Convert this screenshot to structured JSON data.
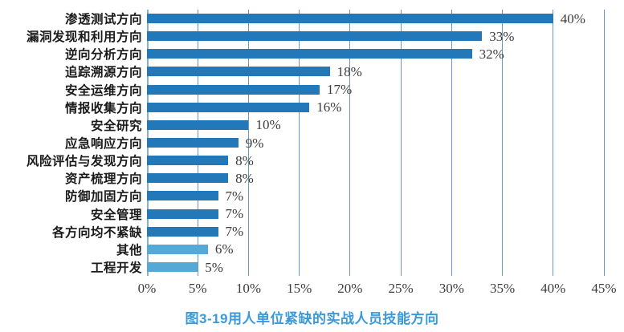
{
  "chart_data": {
    "type": "bar",
    "orientation": "horizontal",
    "title": "图3-19用人单位紧缺的实战人员技能方向",
    "categories": [
      "渗透测试方向",
      "漏洞发现和利用方向",
      "逆向分析方向",
      "追踪溯源方向",
      "安全运维方向",
      "情报收集方向",
      "安全研究",
      "应急响应方向",
      "风险评估与发现方向",
      "资产梳理方向",
      "防御加固方向",
      "安全管理",
      "各方向均不紧缺",
      "其他",
      "工程开发"
    ],
    "values": [
      40,
      33,
      32,
      18,
      17,
      16,
      10,
      9,
      8,
      8,
      7,
      7,
      7,
      6,
      5
    ],
    "value_labels": [
      "40%",
      "33%",
      "32%",
      "18%",
      "17%",
      "16%",
      "10%",
      "9%",
      "8%",
      "8%",
      "7%",
      "7%",
      "7%",
      "6%",
      "5%"
    ],
    "bar_shades": [
      "dark",
      "dark",
      "dark",
      "dark",
      "dark",
      "dark",
      "dark",
      "dark",
      "dark",
      "dark",
      "dark",
      "dark",
      "dark",
      "light",
      "light"
    ],
    "xlim": [
      0,
      45
    ],
    "x_ticks": [
      "0%",
      "5%",
      "10%",
      "15%",
      "20%",
      "25%",
      "30%",
      "35%",
      "40%",
      "45%"
    ],
    "grid": true,
    "legend": "none",
    "xlabel": "",
    "ylabel": "",
    "colors": {
      "bar_dark": "#2278b8",
      "bar_light": "#55a9d4",
      "gridline": "#6598c8",
      "axis_line": "#85afd4",
      "title_text": "#3a9ad9",
      "category_text": "#1a1a1a",
      "value_text": "#3d3d3d"
    }
  }
}
